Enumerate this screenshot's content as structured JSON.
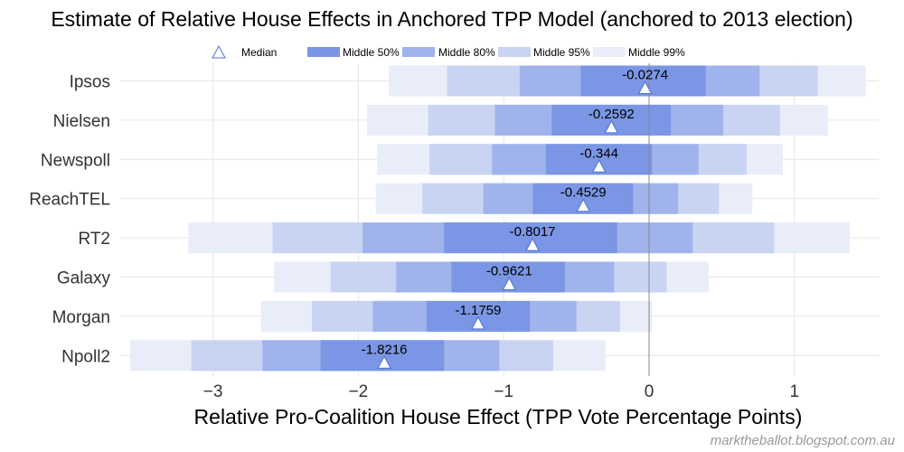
{
  "chart_data": {
    "type": "bar",
    "subtype": "horizontal-interval",
    "title": "Estimate of Relative House Effects in Anchored TPP Model (anchored to 2013 election)",
    "xlabel": "Relative Pro-Coalition House Effect (TPP Vote Percentage Points)",
    "ylabel": "",
    "xlim": [
      -3.57,
      1.58
    ],
    "xticks": [
      -3,
      -2,
      -1,
      0,
      1
    ],
    "xtick_labels": [
      "−3",
      "−2",
      "−1",
      "0",
      "1"
    ],
    "grid": true,
    "legend_position": "top-center",
    "legend": [
      {
        "key": "median",
        "label": "Median"
      },
      {
        "key": "mid50",
        "label": "Middle 50%"
      },
      {
        "key": "mid80",
        "label": "Middle 80%"
      },
      {
        "key": "mid95",
        "label": "Middle 95%"
      },
      {
        "key": "mid99",
        "label": "Middle 99%"
      }
    ],
    "colors": {
      "mid50": "#7a96e4",
      "mid80": "#a0b3ec",
      "mid95": "#c9d3f2",
      "mid99": "#e9edf9",
      "median_outline": "#4a72d6",
      "zero_line": "#888888",
      "grid": "#e6e6e6"
    },
    "categories": [
      "Ipsos",
      "Nielsen",
      "Newspoll",
      "ReachTEL",
      "RT2",
      "Galaxy",
      "Morgan",
      "Npoll2"
    ],
    "series": [
      {
        "name": "Ipsos",
        "median": -0.0274,
        "median_label": "-0.0274",
        "mid50": [
          -0.47,
          0.39
        ],
        "mid80": [
          -0.89,
          0.76
        ],
        "mid95": [
          -1.39,
          1.16
        ],
        "mid99": [
          -1.79,
          1.49
        ]
      },
      {
        "name": "Nielsen",
        "median": -0.2592,
        "median_label": "-0.2592",
        "mid50": [
          -0.67,
          0.15
        ],
        "mid80": [
          -1.06,
          0.51
        ],
        "mid95": [
          -1.52,
          0.9
        ],
        "mid99": [
          -1.94,
          1.23
        ]
      },
      {
        "name": "Newspoll",
        "median": -0.344,
        "median_label": "-0.344",
        "mid50": [
          -0.71,
          0.02
        ],
        "mid80": [
          -1.08,
          0.34
        ],
        "mid95": [
          -1.51,
          0.67
        ],
        "mid99": [
          -1.87,
          0.92
        ]
      },
      {
        "name": "ReachTEL",
        "median": -0.4529,
        "median_label": "-0.4529",
        "mid50": [
          -0.8,
          -0.11
        ],
        "mid80": [
          -1.14,
          0.2
        ],
        "mid95": [
          -1.56,
          0.48
        ],
        "mid99": [
          -1.88,
          0.71
        ]
      },
      {
        "name": "RT2",
        "median": -0.8017,
        "median_label": "-0.8017",
        "mid50": [
          -1.41,
          -0.22
        ],
        "mid80": [
          -1.97,
          0.3
        ],
        "mid95": [
          -2.59,
          0.86
        ],
        "mid99": [
          -3.17,
          1.38
        ]
      },
      {
        "name": "Galaxy",
        "median": -0.9621,
        "median_label": "-0.9621",
        "mid50": [
          -1.36,
          -0.58
        ],
        "mid80": [
          -1.74,
          -0.24
        ],
        "mid95": [
          -2.19,
          0.12
        ],
        "mid99": [
          -2.58,
          0.41
        ]
      },
      {
        "name": "Morgan",
        "median": -1.1759,
        "median_label": "-1.1759",
        "mid50": [
          -1.53,
          -0.82
        ],
        "mid80": [
          -1.9,
          -0.5
        ],
        "mid95": [
          -2.32,
          -0.2
        ],
        "mid99": [
          -2.67,
          0.02
        ]
      },
      {
        "name": "Npoll2",
        "median": -1.8216,
        "median_label": "-1.8216",
        "mid50": [
          -2.26,
          -1.41
        ],
        "mid80": [
          -2.66,
          -1.03
        ],
        "mid95": [
          -3.15,
          -0.66
        ],
        "mid99": [
          -3.57,
          -0.3
        ]
      }
    ]
  },
  "watermark": "marktheballot.blogspot.com.au"
}
